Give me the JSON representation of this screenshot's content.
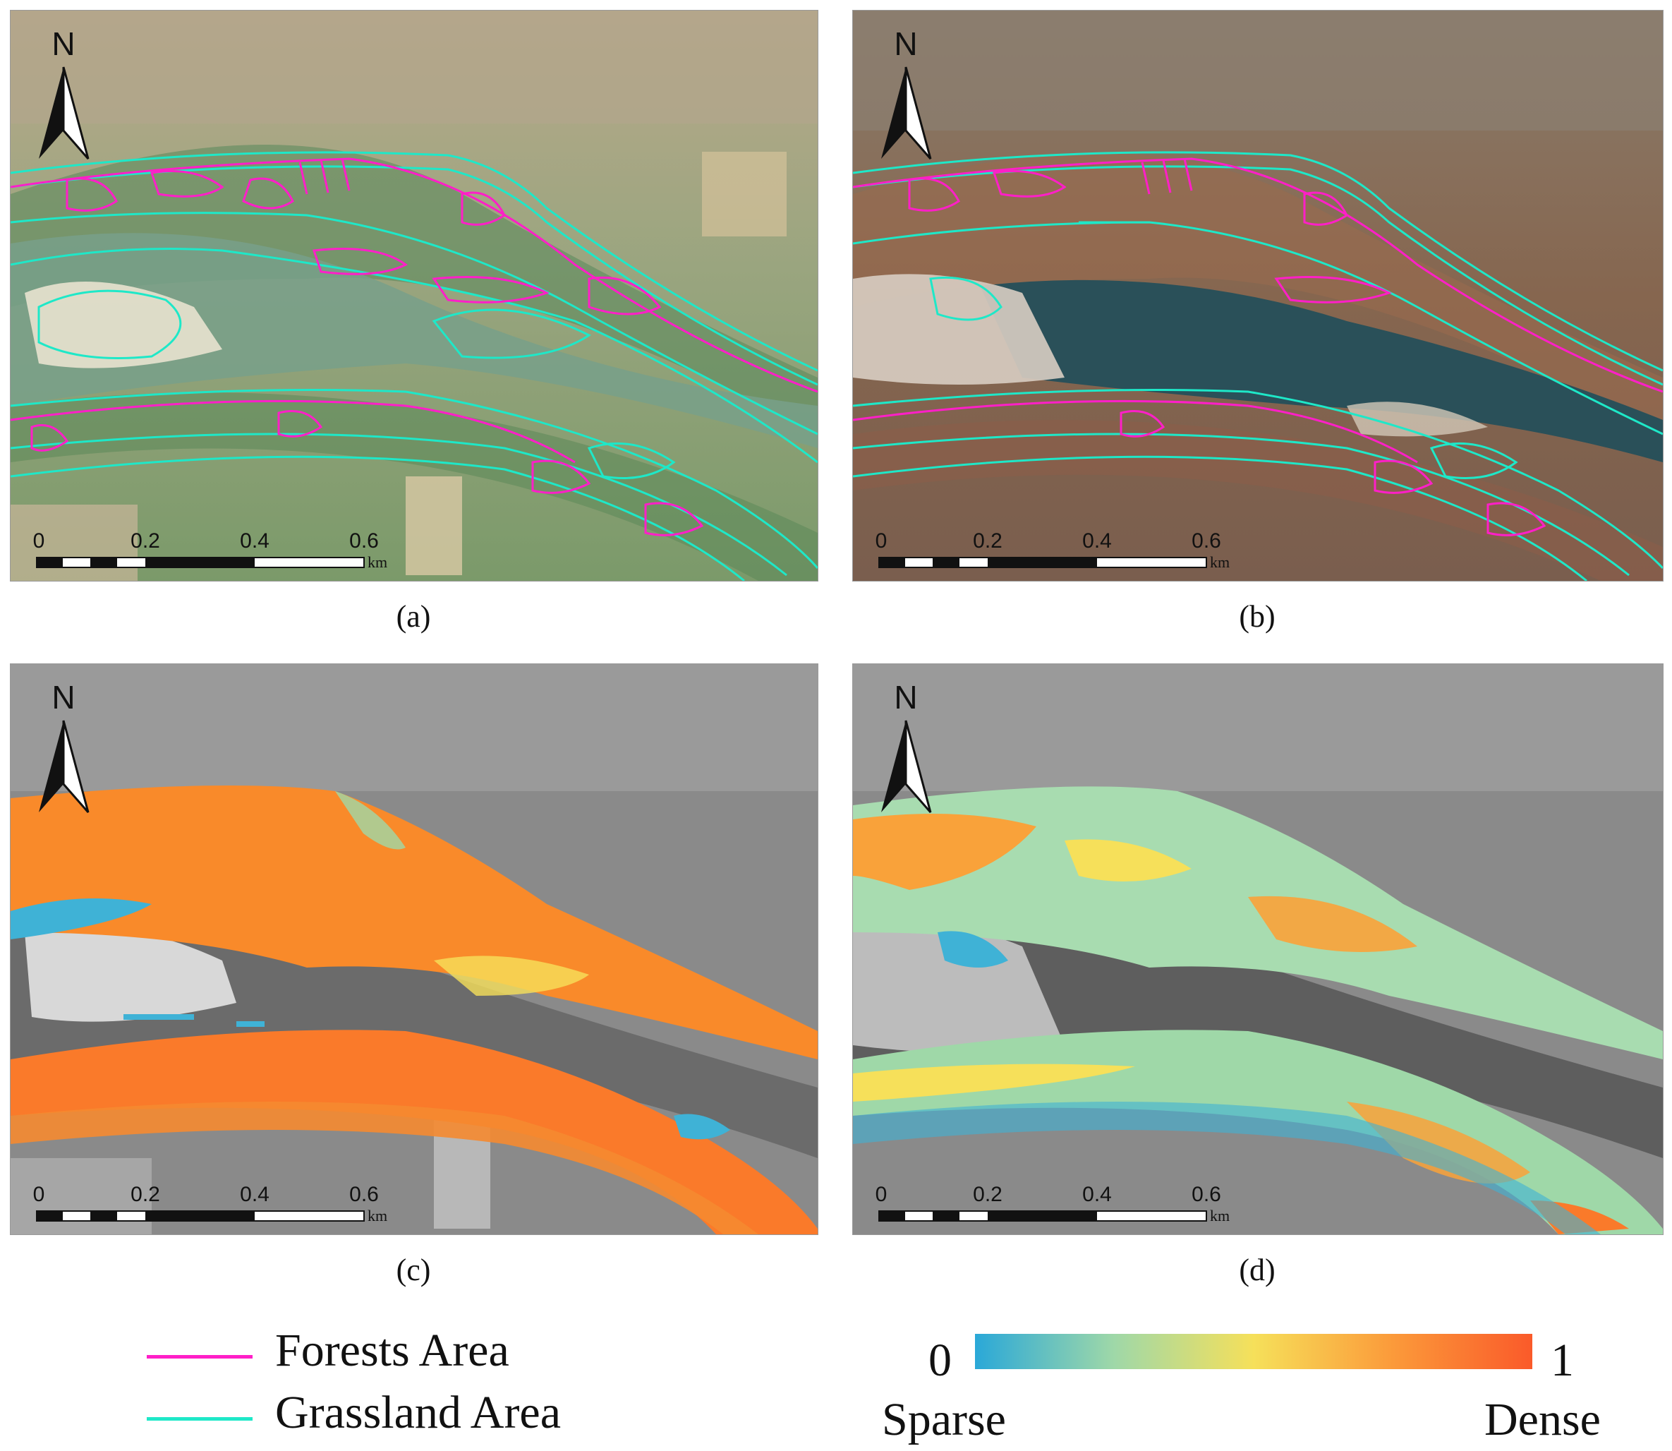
{
  "panels": [
    {
      "id": "a",
      "caption": "(a)"
    },
    {
      "id": "b",
      "caption": "(b)"
    },
    {
      "id": "c",
      "caption": "(c)"
    },
    {
      "id": "d",
      "caption": "(d)"
    }
  ],
  "north_arrow": {
    "label": "N"
  },
  "scale_bar": {
    "ticks": [
      "0",
      "0.2",
      "0.4",
      "0.6"
    ],
    "unit": "km"
  },
  "legend": {
    "forests": {
      "label": "Forests Area",
      "color": "#ff1fc8"
    },
    "grassland": {
      "label": "Grassland Area",
      "color": "#1ee8c8"
    }
  },
  "colorbar": {
    "min_label": "0",
    "max_label": "1",
    "low_label": "Sparse",
    "high_label": "Dense",
    "colors": [
      "#2aa8d8",
      "#9fd8a8",
      "#f6e05a",
      "#fb9a3a",
      "#fa5a2a"
    ]
  }
}
